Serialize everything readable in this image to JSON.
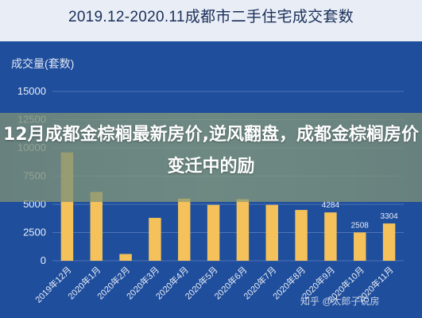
{
  "title": "2019.12-2020.11成都市二手住宅成交套数",
  "overlay_title": "12月成都金棕榈最新房价,逆风翻盘，成都金棕榈房价变迁中的励",
  "watermark": "知乎 @太郎子说房",
  "colors": {
    "bar": "#f4c15a",
    "background": "#1f4e9c",
    "grid": "#4e74b5",
    "text": "#e8eef8"
  },
  "chart_data": {
    "type": "bar",
    "title": "2019.12-2020.11成都市二手住宅成交套数",
    "ylabel": "成交量(套数)",
    "xlabel": "",
    "ylim": [
      0,
      15000
    ],
    "yticks": [
      0,
      2500,
      5000,
      7500,
      10000,
      12500,
      15000
    ],
    "grid": true,
    "categories": [
      "2019年12月",
      "2020年1月",
      "2020年2月",
      "2020年3月",
      "2020年4月",
      "2020年5月",
      "2020年6月",
      "2020年7月",
      "2020年8月",
      "2020年9月",
      "2020年10月",
      "2020年11月"
    ],
    "values": [
      9600,
      6100,
      600,
      3800,
      5500,
      4950,
      5450,
      4950,
      4500,
      4284,
      2508,
      3304
    ],
    "data_labels": [
      "",
      "",
      "",
      "",
      "",
      "",
      "",
      "",
      "",
      "4284",
      "2508",
      "3304"
    ]
  }
}
